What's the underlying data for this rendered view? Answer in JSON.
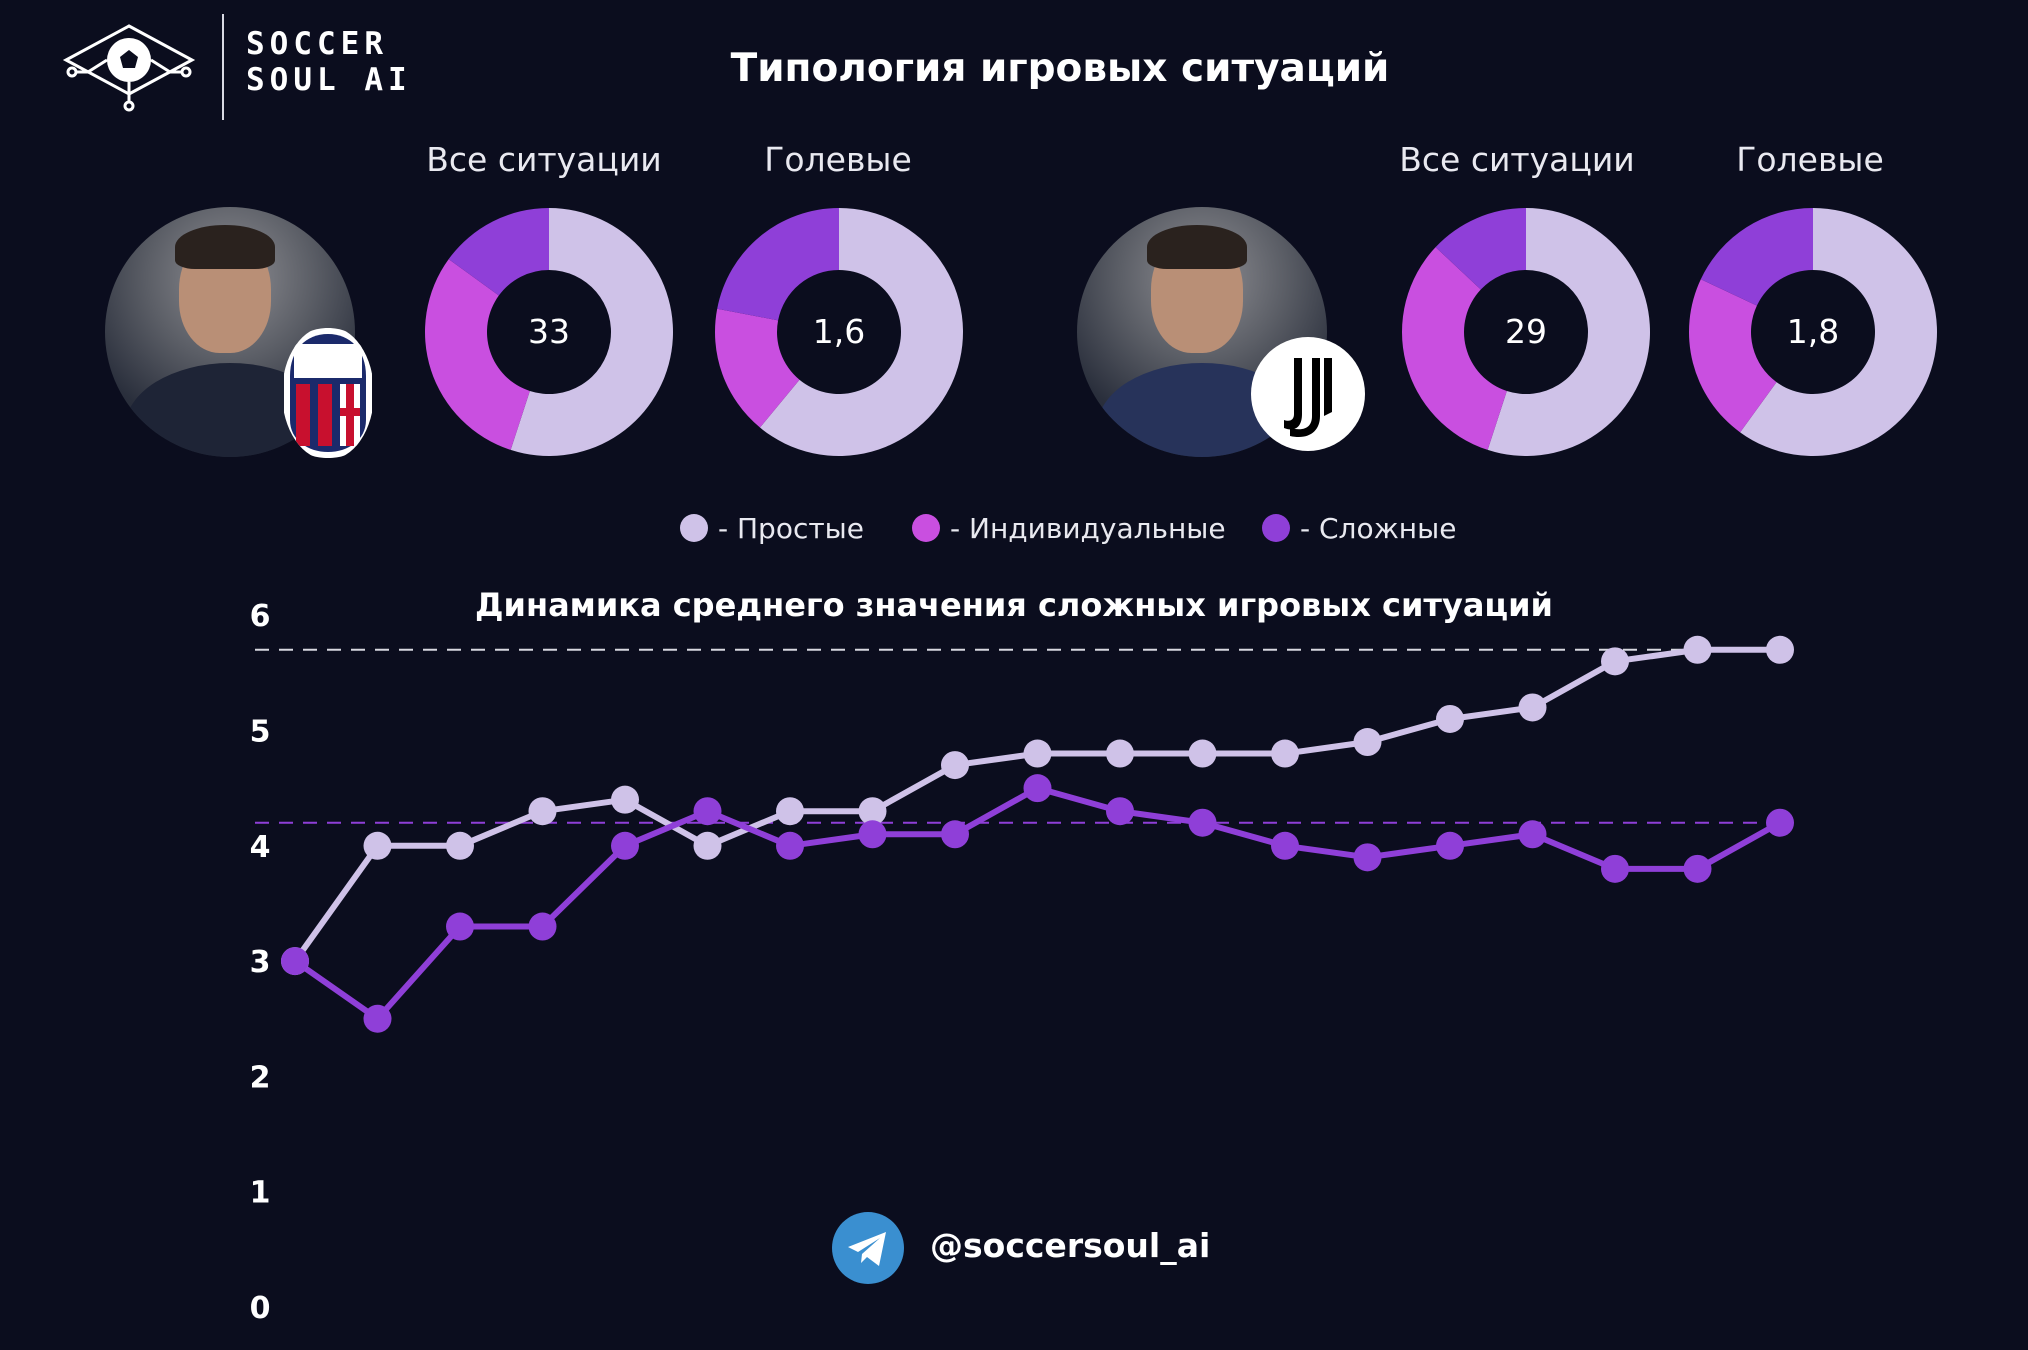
{
  "brand": {
    "line1": "SOCCER",
    "line2": "SOUL AI"
  },
  "title": "Типология игровых ситуаций",
  "column_labels": {
    "left_all": "Все ситуации",
    "left_goal": "Голевые",
    "right_all": "Все ситуации",
    "right_goal": "Голевые"
  },
  "colors": {
    "simple": "#cfc2e8",
    "individual": "#c94fe0",
    "complex": "#8f3fd8",
    "background": "#0b0d1e"
  },
  "coaches": [
    {
      "club_icon": "bologna-fc-1909-crest-icon"
    },
    {
      "club_icon": "juventus-logo-icon"
    }
  ],
  "donuts": [
    {
      "center": "33",
      "segments": [
        {
          "key": "simple",
          "value": 0.55
        },
        {
          "key": "individual",
          "value": 0.3
        },
        {
          "key": "complex",
          "value": 0.15
        }
      ]
    },
    {
      "center": "1,6",
      "segments": [
        {
          "key": "simple",
          "value": 0.61
        },
        {
          "key": "individual",
          "value": 0.17
        },
        {
          "key": "complex",
          "value": 0.22
        }
      ]
    },
    {
      "center": "29",
      "segments": [
        {
          "key": "simple",
          "value": 0.55
        },
        {
          "key": "individual",
          "value": 0.32
        },
        {
          "key": "complex",
          "value": 0.13
        }
      ]
    },
    {
      "center": "1,8",
      "segments": [
        {
          "key": "simple",
          "value": 0.6
        },
        {
          "key": "individual",
          "value": 0.22
        },
        {
          "key": "complex",
          "value": 0.18
        }
      ]
    }
  ],
  "legend": [
    {
      "label": "- Простые",
      "color": "#cfc2e8"
    },
    {
      "label": "- Индивидуальные",
      "color": "#c94fe0"
    },
    {
      "label": "- Сложные",
      "color": "#8f3fd8"
    }
  ],
  "chart_data": {
    "type": "line",
    "title": "Динамика среднего значения сложных игровых ситуаций",
    "ylim": [
      0,
      6
    ],
    "yticks": [
      "0",
      "1",
      "2",
      "3",
      "4",
      "5",
      "6"
    ],
    "x": [
      1,
      2,
      3,
      4,
      5,
      6,
      7,
      8,
      9,
      10,
      11,
      12,
      13,
      14,
      15,
      16,
      17,
      18,
      19
    ],
    "series": [
      {
        "color": "#cfc2e8",
        "values": [
          3.0,
          4.0,
          4.0,
          4.3,
          4.4,
          4.0,
          4.3,
          4.3,
          4.7,
          4.8,
          4.8,
          4.8,
          4.8,
          4.9,
          5.1,
          5.2,
          5.6,
          5.7,
          5.7
        ],
        "reference_line": 5.7
      },
      {
        "color": "#8f3fd8",
        "values": [
          3.0,
          2.5,
          3.3,
          3.3,
          4.0,
          4.3,
          4.0,
          4.1,
          4.1,
          4.5,
          4.3,
          4.2,
          4.0,
          3.9,
          4.0,
          4.1,
          3.8,
          3.8,
          4.2
        ],
        "reference_line": 4.2
      }
    ],
    "grid": false,
    "legend": "none"
  },
  "footer": {
    "handle": "@soccersoul_ai",
    "icon": "telegram-icon"
  }
}
